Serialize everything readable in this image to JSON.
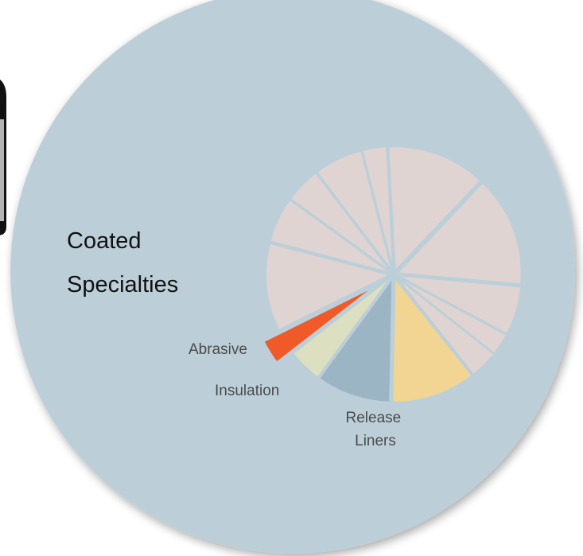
{
  "chart_data": {
    "type": "pie",
    "title": "",
    "highlighted_label": "Coated Specialties",
    "slices": [
      {
        "label": "",
        "value": 12.2,
        "color": "#e0d4d2",
        "offset": 0
      },
      {
        "label": "",
        "value": 13.6,
        "color": "#e0d4d2",
        "offset": 0
      },
      {
        "label": "",
        "value": 6.0,
        "color": "#e0d4d2",
        "offset": 0
      },
      {
        "label": "",
        "value": 2.7,
        "color": "#e0d4d2",
        "offset": 0
      },
      {
        "label": "",
        "value": 3.5,
        "color": "#e0d4d2",
        "offset": 0
      },
      {
        "label": "Release Liners",
        "value": 10.4,
        "color": "#f2d493",
        "offset": 0
      },
      {
        "label": "Insulation",
        "value": 9.2,
        "color": "#9bb5c5",
        "offset": 0
      },
      {
        "label": "Abrasive",
        "value": 4.2,
        "color": "#dde0c0",
        "offset": 0
      },
      {
        "label": "Coated Specialties",
        "value": 3.0,
        "color": "#f05a28",
        "offset": 1
      },
      {
        "label": "",
        "value": 10.8,
        "color": "#e0d4d2",
        "offset": 0
      },
      {
        "label": "",
        "value": 5.6,
        "color": "#e0d4d2",
        "offset": 0
      },
      {
        "label": "",
        "value": 4.4,
        "color": "#e0d4d2",
        "offset": 0
      },
      {
        "label": "",
        "value": 6.0,
        "color": "#e0d4d2",
        "offset": 0
      },
      {
        "label": "",
        "value": 3.0,
        "color": "#e0d4d2",
        "offset": 0
      }
    ]
  },
  "colors": {
    "background_circle": "#bccfd8",
    "highlight": "#f05a28",
    "thumbnail_frame": "#111111",
    "thumbnail_fill": "#b5b5b5"
  }
}
